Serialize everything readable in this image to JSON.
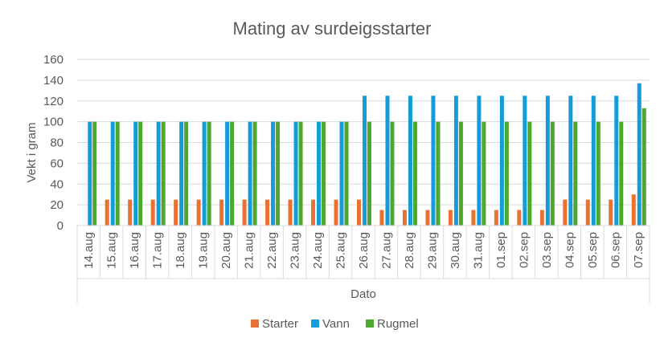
{
  "chart_data": {
    "type": "bar",
    "title": "Mating av surdeigsstarter",
    "xlabel": "Dato",
    "ylabel": "Vekt i gram",
    "ylim": [
      0,
      160
    ],
    "yticks": [
      0,
      20,
      40,
      60,
      80,
      100,
      120,
      140,
      160
    ],
    "grid": true,
    "legend_position": "bottom",
    "categories": [
      "14.aug",
      "15.aug",
      "16.aug",
      "17.aug",
      "18.aug",
      "19.aug",
      "20.aug",
      "21.aug",
      "22.aug",
      "23.aug",
      "24.aug",
      "25.aug",
      "26.aug",
      "27.aug",
      "28.aug",
      "29.aug",
      "30.aug",
      "31.aug",
      "01.sep",
      "02.sep",
      "03.sep",
      "04.sep",
      "05.sep",
      "06.sep",
      "07.sep"
    ],
    "series": [
      {
        "name": "Starter",
        "color": "#E97132",
        "values": [
          0,
          25,
          25,
          25,
          25,
          25,
          25,
          25,
          25,
          25,
          25,
          25,
          25,
          15,
          15,
          15,
          15,
          15,
          15,
          15,
          15,
          25,
          25,
          25,
          30
        ]
      },
      {
        "name": "Vann",
        "color": "#159CD8",
        "values": [
          100,
          100,
          100,
          100,
          100,
          100,
          100,
          100,
          100,
          100,
          100,
          100,
          125,
          125,
          125,
          125,
          125,
          125,
          125,
          125,
          125,
          125,
          125,
          125,
          137
        ]
      },
      {
        "name": "Rugmel",
        "color": "#4EA72E",
        "values": [
          100,
          100,
          100,
          100,
          100,
          100,
          100,
          100,
          100,
          100,
          100,
          100,
          100,
          100,
          100,
          100,
          100,
          100,
          100,
          100,
          100,
          100,
          100,
          100,
          113
        ]
      }
    ]
  }
}
